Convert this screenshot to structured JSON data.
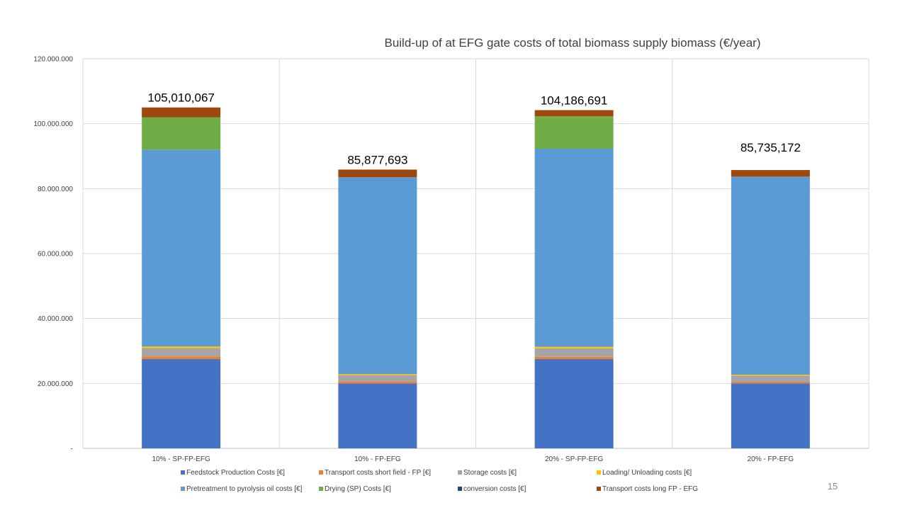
{
  "page_number": "15",
  "chart_data": {
    "type": "bar",
    "stacked": true,
    "title": "Build-up of at EFG gate costs of total biomass supply biomass (€/year)",
    "xlabel": "",
    "ylabel": "",
    "ylim": [
      0,
      120000000
    ],
    "yticks": [
      "-",
      "20.000.000",
      "40.000.000",
      "60.000.000",
      "80.000.000",
      "100.000.000",
      "120.000.000"
    ],
    "grid": true,
    "legend_position": "bottom",
    "categories": [
      "10% - SP-FP-EFG",
      "10% - FP-EFG",
      "20% - SP-FP-EFG",
      "20% - FP-EFG"
    ],
    "totals": [
      "105,010,067",
      "85,877,693",
      "104,186,691",
      "85,735,172"
    ],
    "series": [
      {
        "name": "Feedstock Production Costs [€]",
        "color": "#4472C4",
        "values": [
          27500000,
          20000000,
          27500000,
          20000000
        ]
      },
      {
        "name": "Transport costs short field - FP [€]",
        "color": "#ED7D31",
        "values": [
          800000,
          600000,
          700000,
          400000
        ]
      },
      {
        "name": "Storage costs [€]",
        "color": "#A5A5A5",
        "values": [
          2600000,
          2000000,
          2600000,
          2000000
        ]
      },
      {
        "name": "Loading/ Unloading costs [€]",
        "color": "#FFC000",
        "values": [
          500000,
          300000,
          500000,
          300000
        ]
      },
      {
        "name": "Pretreatment to pyrolysis oil costs [€]",
        "color": "#5B9BD5",
        "values": [
          60600000,
          60600000,
          61000000,
          61000000
        ]
      },
      {
        "name": "Drying (SP) Costs [€]",
        "color": "#70AD47",
        "values": [
          10000000,
          0,
          10000000,
          0
        ]
      },
      {
        "name": "conversion costs [€]",
        "color": "#264478",
        "values": [
          0,
          0,
          0,
          0
        ]
      },
      {
        "name": "Transport costs long FP - EFG",
        "color": "#9E480E",
        "values": [
          3010067,
          2377693,
          1886691,
          2035172
        ]
      }
    ]
  }
}
